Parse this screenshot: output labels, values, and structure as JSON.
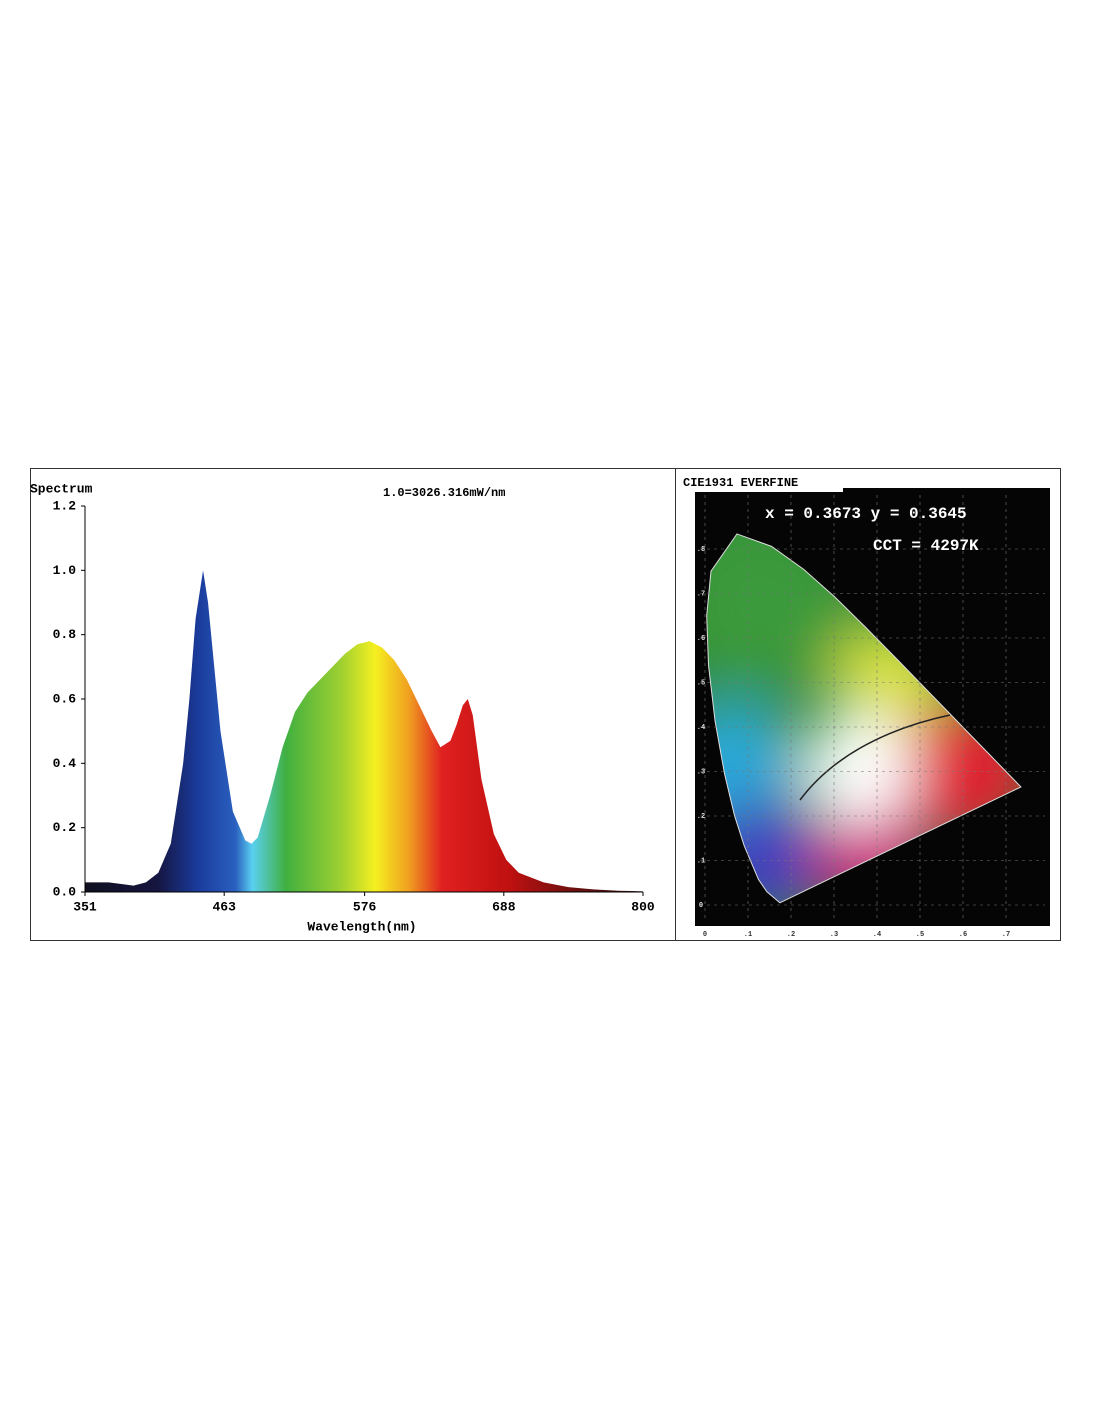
{
  "chart_data": [
    {
      "type": "area",
      "title": "Spectrum",
      "subtitle": "1.0=3026.316mW/nm",
      "x_label": "Wavelength(nm)",
      "x": [
        351,
        370,
        390,
        400,
        410,
        420,
        430,
        435,
        440,
        446,
        450,
        455,
        460,
        470,
        480,
        485,
        490,
        500,
        510,
        520,
        530,
        540,
        550,
        560,
        570,
        580,
        590,
        600,
        610,
        620,
        630,
        637,
        645,
        650,
        655,
        659,
        663,
        670,
        680,
        690,
        700,
        720,
        740,
        760,
        780,
        800
      ],
      "values": [
        0.03,
        0.03,
        0.02,
        0.03,
        0.06,
        0.15,
        0.4,
        0.6,
        0.85,
        1.0,
        0.9,
        0.7,
        0.5,
        0.25,
        0.16,
        0.15,
        0.17,
        0.3,
        0.45,
        0.56,
        0.62,
        0.66,
        0.7,
        0.74,
        0.77,
        0.78,
        0.76,
        0.72,
        0.66,
        0.58,
        0.5,
        0.45,
        0.47,
        0.52,
        0.58,
        0.6,
        0.55,
        0.35,
        0.18,
        0.1,
        0.06,
        0.03,
        0.015,
        0.008,
        0.004,
        0.002
      ],
      "xlim": [
        351,
        800
      ],
      "xticks": [
        351,
        463,
        576,
        688,
        800
      ],
      "ylim": [
        0,
        1.2
      ],
      "yticks": [
        {
          "value": 0,
          "label": "0.0"
        },
        0.2,
        0.4,
        0.6,
        0.8,
        {
          "value": 1,
          "label": "1.0"
        },
        1.2
      ]
    },
    {
      "type": "chromaticity",
      "title": "CIE1931 EVERFINE",
      "annotations": [
        "x = 0.3673 y = 0.3645",
        "CCT = 4297K"
      ],
      "xlim": [
        0,
        0.8
      ],
      "xticks": [
        {
          "value": 0,
          "label": "0"
        },
        {
          "value": 0.1,
          "label": ".1"
        },
        {
          "value": 0.2,
          "label": ".2"
        },
        {
          "value": 0.3,
          "label": ".3"
        },
        {
          "value": 0.4,
          "label": ".4"
        },
        {
          "value": 0.5,
          "label": ".5"
        },
        {
          "value": 0.6,
          "label": ".6"
        },
        {
          "value": 0.7,
          "label": ".7"
        }
      ],
      "ylim": [
        0,
        0.9
      ],
      "yticks": [
        {
          "value": 0,
          "label": "0"
        },
        {
          "value": 0.1,
          "label": ".1"
        },
        {
          "value": 0.2,
          "label": ".2"
        },
        {
          "value": 0.3,
          "label": ".3"
        },
        {
          "value": 0.4,
          "label": ".4"
        },
        {
          "value": 0.5,
          "label": ".5"
        },
        {
          "value": 0.6,
          "label": ".6"
        },
        {
          "value": 0.7,
          "label": ".7"
        },
        {
          "value": 0.8,
          "label": ".8"
        }
      ]
    }
  ]
}
